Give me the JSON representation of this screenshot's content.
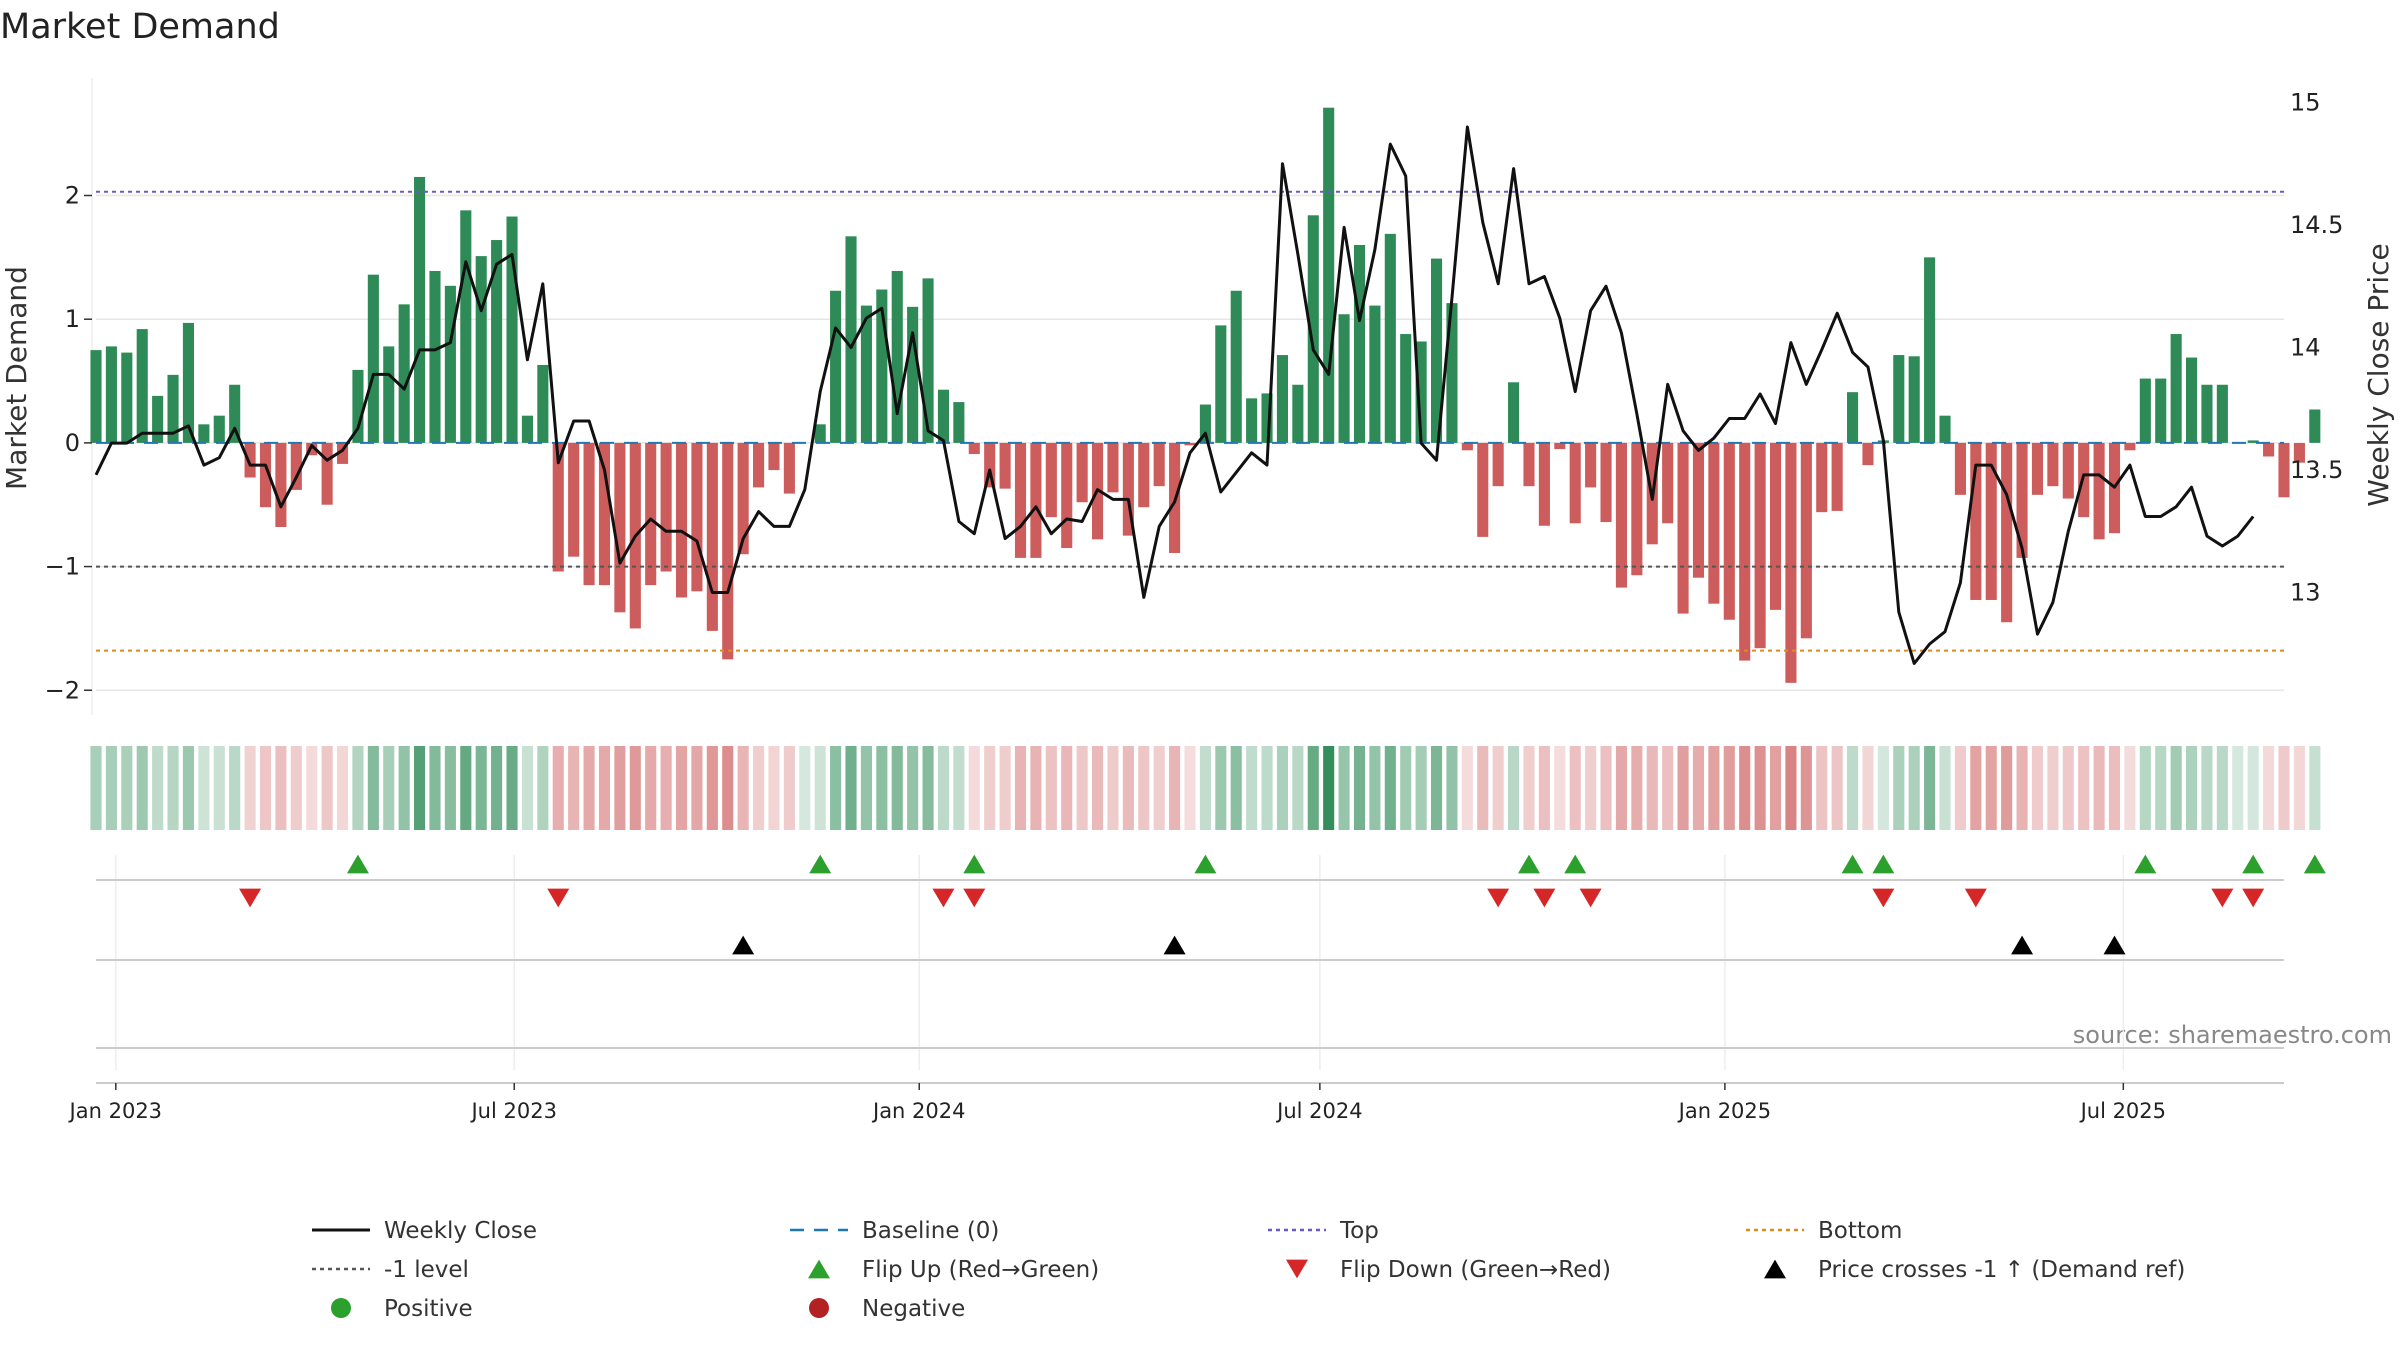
{
  "chart_data": {
    "type": "bar+line",
    "title": "Market Demand",
    "ylabel_left": "Market Demand",
    "ylabel_right": "Weekly Close Price",
    "source": "source: sharemaestro.com",
    "x_start": "2022-12-23",
    "x_end": "2025-09-12",
    "week_days": 7,
    "ylim_left": [
      -2.2,
      2.95
    ],
    "ylim_right": [
      12.5,
      15.1
    ],
    "yticks_left": [
      {
        "v": 2,
        "label": "2"
      },
      {
        "v": 1,
        "label": "1"
      },
      {
        "v": 0,
        "label": "0"
      },
      {
        "v": -1,
        "label": "−1"
      },
      {
        "v": -2,
        "label": "−2"
      }
    ],
    "yticks_right": [
      {
        "v": 15,
        "label": "15"
      },
      {
        "v": 14.5,
        "label": "14.5"
      },
      {
        "v": 14,
        "label": "14"
      },
      {
        "v": 13.5,
        "label": "13.5"
      },
      {
        "v": 13,
        "label": "13"
      }
    ],
    "xticks": [
      {
        "date": "2023-01-01",
        "label": "Jan 2023"
      },
      {
        "date": "2023-07-01",
        "label": "Jul 2023"
      },
      {
        "date": "2024-01-01",
        "label": "Jan 2024"
      },
      {
        "date": "2024-07-01",
        "label": "Jul 2024"
      },
      {
        "date": "2025-01-01",
        "label": "Jan 2025"
      },
      {
        "date": "2025-07-01",
        "label": "Jul 2025"
      }
    ],
    "reference_lines": {
      "top": 2.03,
      "minus_one": -1.0,
      "bottom": -1.68,
      "baseline": 0
    },
    "demand": [
      0.75,
      0.78,
      0.73,
      0.92,
      0.38,
      0.55,
      0.97,
      0.15,
      0.22,
      0.47,
      -0.28,
      -0.52,
      -0.68,
      -0.38,
      -0.1,
      -0.5,
      -0.17,
      0.59,
      1.36,
      0.78,
      1.12,
      2.15,
      1.39,
      1.27,
      1.88,
      1.51,
      1.64,
      1.83,
      0.22,
      0.63,
      -1.04,
      -0.92,
      -1.15,
      -1.15,
      -1.37,
      -1.5,
      -1.15,
      -1.04,
      -1.25,
      -1.2,
      -1.52,
      -1.75,
      -0.9,
      -0.36,
      -0.22,
      -0.41,
      0,
      0.15,
      1.23,
      1.67,
      1.11,
      1.24,
      1.39,
      1.1,
      1.33,
      0.43,
      0.33,
      -0.09,
      -0.36,
      -0.37,
      -0.93,
      -0.93,
      -0.6,
      -0.85,
      -0.48,
      -0.78,
      -0.4,
      -0.75,
      -0.52,
      -0.35,
      -0.89,
      -0.02,
      0.31,
      0.95,
      1.23,
      0.36,
      0.4,
      0.71,
      0.47,
      1.84,
      2.71,
      1.04,
      1.6,
      1.11,
      1.69,
      0.88,
      0.82,
      1.49,
      1.13,
      -0.06,
      -0.76,
      -0.35,
      0.49,
      -0.35,
      -0.67,
      -0.05,
      -0.65,
      -0.36,
      -0.64,
      -1.17,
      -1.07,
      -0.82,
      -0.65,
      -1.38,
      -1.09,
      -1.3,
      -1.43,
      -1.76,
      -1.66,
      -1.35,
      -1.94,
      -1.58,
      -0.56,
      -0.55,
      0.41,
      -0.18,
      0.02,
      0.71,
      0.7,
      1.5,
      0.22,
      -0.42,
      -1.27,
      -1.27,
      -1.45,
      -0.93,
      -0.42,
      -0.35,
      -0.45,
      -0.6,
      -0.78,
      -0.73,
      -0.06,
      0.52,
      0.52,
      0.88,
      0.69,
      0.47,
      0.47,
      0,
      0.02,
      -0.11,
      -0.44,
      -0.16,
      0.27
    ],
    "close": [
      13.48,
      13.61,
      13.61,
      13.65,
      13.65,
      13.65,
      13.68,
      13.52,
      13.55,
      13.67,
      13.52,
      13.52,
      13.35,
      13.47,
      13.6,
      13.54,
      13.58,
      13.67,
      13.89,
      13.89,
      13.83,
      13.99,
      13.99,
      14.02,
      14.35,
      14.15,
      14.34,
      14.38,
      13.95,
      14.26,
      13.53,
      13.7,
      13.7,
      13.5,
      13.12,
      13.23,
      13.3,
      13.25,
      13.25,
      13.21,
      13.0,
      13.0,
      13.22,
      13.33,
      13.27,
      13.27,
      13.42,
      13.82,
      14.08,
      14.0,
      14.12,
      14.16,
      13.73,
      14.06,
      13.66,
      13.62,
      13.29,
      13.24,
      13.5,
      13.22,
      13.27,
      13.35,
      13.24,
      13.3,
      13.29,
      13.42,
      13.38,
      13.38,
      12.98,
      13.27,
      13.37,
      13.57,
      13.65,
      13.41,
      13.49,
      13.57,
      13.52,
      14.75,
      14.38,
      13.99,
      13.89,
      14.49,
      14.11,
      14.4,
      14.83,
      14.7,
      13.61,
      13.54,
      14.2,
      14.9,
      14.51,
      14.26,
      14.73,
      14.26,
      14.29,
      14.12,
      13.82,
      14.15,
      14.25,
      14.06,
      13.73,
      13.38,
      13.85,
      13.66,
      13.58,
      13.63,
      13.71,
      13.71,
      13.81,
      13.69,
      14.02,
      13.85,
      13.99,
      14.14,
      13.98,
      13.92,
      13.62,
      12.92,
      12.71,
      12.79,
      12.84,
      13.04,
      13.52,
      13.52,
      13.4,
      13.18,
      12.83,
      12.96,
      13.25,
      13.48,
      13.48,
      13.43,
      13.52,
      13.31,
      13.31,
      13.35,
      13.43,
      13.23,
      13.19,
      13.23,
      13.31
    ],
    "flip_up_weeks": [
      17,
      47,
      57,
      72,
      93,
      96,
      114,
      116,
      133,
      140,
      144
    ],
    "flip_down_weeks": [
      10,
      30,
      55,
      57,
      91,
      94,
      97,
      116,
      122,
      138,
      140
    ],
    "price_cross_weeks": [
      42,
      70,
      125,
      131
    ],
    "legend": [
      {
        "key": "weekly_close",
        "label": "Weekly Close",
        "color": "#111111"
      },
      {
        "key": "baseline",
        "label": "Baseline (0)",
        "color": "#1f77b4"
      },
      {
        "key": "top",
        "label": "Top",
        "color": "#6a5acd"
      },
      {
        "key": "bottom",
        "label": "Bottom",
        "color": "#e08a1e"
      },
      {
        "key": "minus_one",
        "label": "-1 level",
        "color": "#555555"
      },
      {
        "key": "flip_up",
        "label": "Flip Up (Red→Green)",
        "color": "#2ca02c"
      },
      {
        "key": "flip_down",
        "label": "Flip Down (Green→Red)",
        "color": "#d62728"
      },
      {
        "key": "price_cross",
        "label": "Price crosses -1 ↑ (Demand ref)",
        "color": "#000000"
      },
      {
        "key": "positive",
        "label": "Positive",
        "color": "#2ca02c"
      },
      {
        "key": "negative",
        "label": "Negative",
        "color": "#b22222"
      }
    ],
    "colors": {
      "positive_bar": "#2e8b57",
      "negative_bar": "#cd5c5c",
      "grid": "#e6e6e6",
      "axis": "#cccccc",
      "strip_positive_rgb": [
        46,
        139,
        87
      ],
      "strip_negative_rgb": [
        205,
        92,
        92
      ]
    }
  }
}
